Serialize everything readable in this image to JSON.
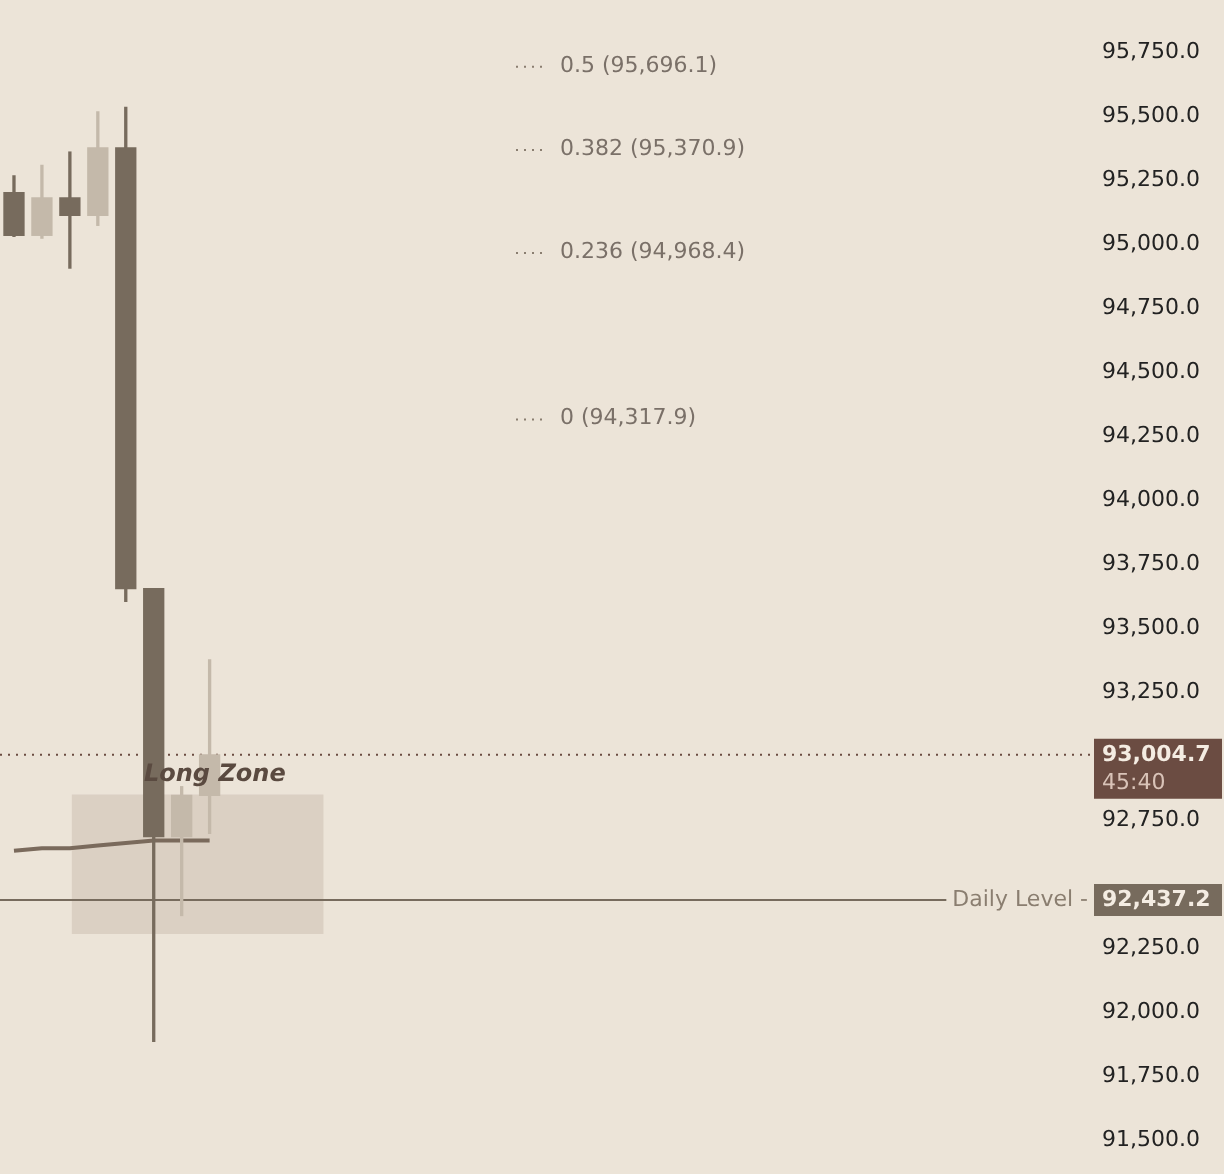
{
  "chart_data": {
    "type": "candlestick",
    "categories": [
      null,
      null,
      null,
      null,
      null,
      null,
      null,
      null,
      null,
      null,
      null,
      null,
      null,
      null,
      null,
      null,
      null,
      null,
      null,
      null,
      null,
      null,
      null,
      null,
      null,
      null,
      null,
      null,
      null,
      null,
      null,
      null,
      null,
      null,
      null,
      null,
      null,
      null,
      null
    ],
    "ohlc": [
      [
        95201,
        95266,
        95030,
        95034
      ],
      [
        95034,
        95307,
        95023,
        95180
      ],
      [
        95180,
        95359,
        94906,
        95112
      ],
      [
        95112,
        95516,
        95073,
        95375
      ],
      [
        95375,
        95534,
        93604,
        93654
      ],
      [
        93654,
        93654,
        91885,
        92685
      ],
      [
        92685,
        92880,
        92377,
        92846
      ],
      [
        92846,
        93375,
        92698,
        93004.7
      ],
      null,
      null,
      null,
      null,
      null,
      null,
      null,
      null,
      null,
      null,
      null,
      null,
      null,
      null,
      null,
      null,
      null,
      null,
      null,
      null,
      null,
      null,
      null,
      null,
      null,
      null,
      null,
      null,
      null,
      null,
      null
    ],
    "colors": [
      "#776b5d",
      "#c4b9aa",
      "#776b5d",
      "#c4b9aa",
      "#776b5d",
      "#776b5d",
      "#c4b9aa",
      "#c4b9aa",
      null,
      null,
      null,
      null,
      null,
      null,
      null,
      null,
      null,
      null,
      null,
      null,
      null,
      null,
      null,
      null,
      null,
      null,
      null,
      null,
      null,
      null,
      null,
      null,
      null,
      null,
      null,
      null,
      null,
      null,
      null
    ],
    "series": [
      {
        "type": "line",
        "color": "#7a6a5c",
        "values": [
          92630,
          92640,
          92640,
          92650,
          92660,
          92670,
          92670,
          92670,
          null,
          null,
          null,
          null,
          null,
          null,
          null,
          null,
          null,
          null,
          null,
          null,
          null,
          null,
          null,
          null,
          null,
          null,
          null,
          null,
          null,
          null,
          null,
          null,
          null,
          null,
          null,
          null,
          null,
          null,
          null
        ]
      }
    ],
    "ylim": [
      91500,
      95750
    ],
    "yticks": [
      {
        "value": 91500,
        "label": "91,500.0"
      },
      {
        "value": 91750,
        "label": "91,750.0"
      },
      {
        "value": 92000,
        "label": "92,000.0"
      },
      {
        "value": 92250,
        "label": "92,250.0"
      },
      {
        "value": 92750,
        "label": "92,750.0"
      },
      {
        "value": 93250,
        "label": "93,250.0"
      },
      {
        "value": 93500,
        "label": "93,500.0"
      },
      {
        "value": 93750,
        "label": "93,750.0"
      },
      {
        "value": 94000,
        "label": "94,000.0"
      },
      {
        "value": 94250,
        "label": "94,250.0"
      },
      {
        "value": 94500,
        "label": "94,500.0"
      },
      {
        "value": 94750,
        "label": "94,750.0"
      },
      {
        "value": 95000,
        "label": "95,000.0"
      },
      {
        "value": 95250,
        "label": "95,250.0"
      },
      {
        "value": 95500,
        "label": "95,500.0"
      },
      {
        "value": 95750,
        "label": "95,750.0"
      }
    ],
    "ref_lines": [
      {
        "axis": "y",
        "value": 93004.7,
        "label": "93,004.7",
        "line_style": "dotted",
        "color": "#6b4c42"
      },
      {
        "axis": "y",
        "value": 92437.2,
        "label": "92,437.2",
        "line_style": "solid",
        "color": "#776b5d"
      },
      {
        "axis": "y",
        "value": 95696.1,
        "label": "0.5 (95,696.1)",
        "line_style": "dotted"
      },
      {
        "axis": "y",
        "value": 95370.9,
        "label": "0.382 (95,370.9)",
        "line_style": "dotted"
      },
      {
        "axis": "y",
        "value": 94968.4,
        "label": "0.236 (94,968.4)",
        "line_style": "dotted"
      },
      {
        "axis": "y",
        "value": 94317.9,
        "label": "0 (94,317.9)",
        "line_style": "dotted"
      }
    ],
    "bands": [
      {
        "axis": "y",
        "from": 92305,
        "to": 92850,
        "label": "Long Zone",
        "color": "#d8cdbf"
      }
    ],
    "annotations": [
      "45:40",
      "Daily Level -"
    ],
    "legend": false,
    "grid": false
  }
}
